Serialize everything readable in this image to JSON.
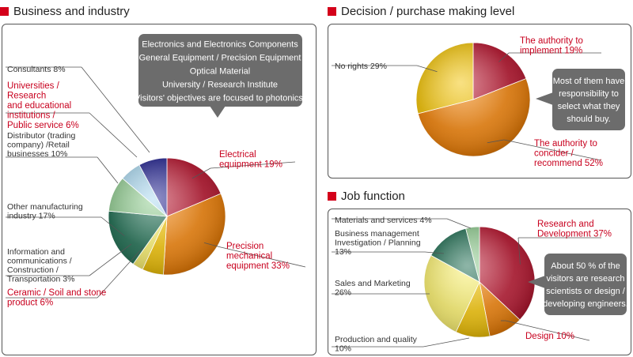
{
  "colors": {
    "crimson": "#b5102a",
    "orange": "#ef7d00",
    "gold": "#f2c200",
    "lightyellow": "#faf06c",
    "darkgreen": "#1a6a4e",
    "lightgreen": "#8fcc8f",
    "lightblue": "#a9d8f0",
    "navy": "#1c1c8c",
    "bubble": "#6c6c6c",
    "accent_red": "#c8001e"
  },
  "headings": {
    "business": "Business and industry",
    "decision": "Decision / purchase making level",
    "job": "Job function"
  },
  "bubbles": {
    "business": [
      "Electronics and Electronics Components",
      "General Equipment / Precision Equipment",
      "Optical Material",
      "University / Research Institute",
      "Visitors' objectives are focused to photonics."
    ],
    "decision": [
      "Most of them have",
      "responsibility to",
      "select what they",
      "should buy."
    ],
    "job": [
      "About 50 % of the",
      "visitors are research",
      "scientists or design /",
      "developing engineers."
    ]
  },
  "chart_data": [
    {
      "type": "pie",
      "title": "Business and industry",
      "slices": [
        {
          "label_lines": [
            "Electrical",
            "equipment   19%"
          ],
          "value": 19,
          "color": "crimson",
          "highlight": true
        },
        {
          "label_lines": [
            "Precision",
            "mechanical",
            "equipment   33%"
          ],
          "value": 33,
          "color": "orange",
          "highlight": true
        },
        {
          "label_lines": [
            "Ceramic / Soil and stone",
            "product   6%"
          ],
          "value": 6,
          "color": "gold",
          "highlight": true
        },
        {
          "label_lines": [
            "Information and",
            "communications /",
            "Construction /",
            "Transportation   3%"
          ],
          "value": 3,
          "color": "lightyellow",
          "highlight": false
        },
        {
          "label_lines": [
            "Other manufacturing",
            "industry   17%"
          ],
          "value": 17,
          "color": "darkgreen",
          "highlight": false
        },
        {
          "label_lines": [
            "Distributor (trading",
            "company) /Retail",
            "businesses   10%"
          ],
          "value": 10,
          "color": "lightgreen",
          "highlight": false
        },
        {
          "label_lines": [
            "Universities /",
            "Research",
            "and educational",
            "institutions /",
            "Public service   6%"
          ],
          "value": 6,
          "color": "lightblue",
          "highlight": true
        },
        {
          "label_lines": [
            "Consultants   8%"
          ],
          "value": 8,
          "color": "navy",
          "highlight": false
        }
      ]
    },
    {
      "type": "pie",
      "title": "Decision / purchase making level",
      "slices": [
        {
          "label_lines": [
            "The authority to",
            "implement   19%"
          ],
          "value": 19,
          "color": "crimson",
          "highlight": true
        },
        {
          "label_lines": [
            "The authority to",
            "concider /",
            "recommend   52%"
          ],
          "value": 52,
          "color": "orange",
          "highlight": true
        },
        {
          "label_lines": [
            "No rights   29%"
          ],
          "value": 29,
          "color": "gold",
          "highlight": false
        }
      ]
    },
    {
      "type": "pie",
      "title": "Job function",
      "slices": [
        {
          "label_lines": [
            "Research and",
            "Development   37%"
          ],
          "value": 37,
          "color": "crimson",
          "highlight": true
        },
        {
          "label_lines": [
            "Design   10%"
          ],
          "value": 10,
          "color": "orange",
          "highlight": true
        },
        {
          "label_lines": [
            "Production and quality",
            "10%"
          ],
          "value": 10,
          "color": "gold",
          "highlight": false
        },
        {
          "label_lines": [
            "Sales and Marketing",
            "26%"
          ],
          "value": 26,
          "color": "lightyellow",
          "highlight": false
        },
        {
          "label_lines": [
            "Business management",
            "Investigation / Planning",
            "13%"
          ],
          "value": 13,
          "color": "darkgreen",
          "highlight": false
        },
        {
          "label_lines": [
            "Materials and services   4%"
          ],
          "value": 4,
          "color": "lightgreen",
          "highlight": false
        }
      ]
    }
  ]
}
